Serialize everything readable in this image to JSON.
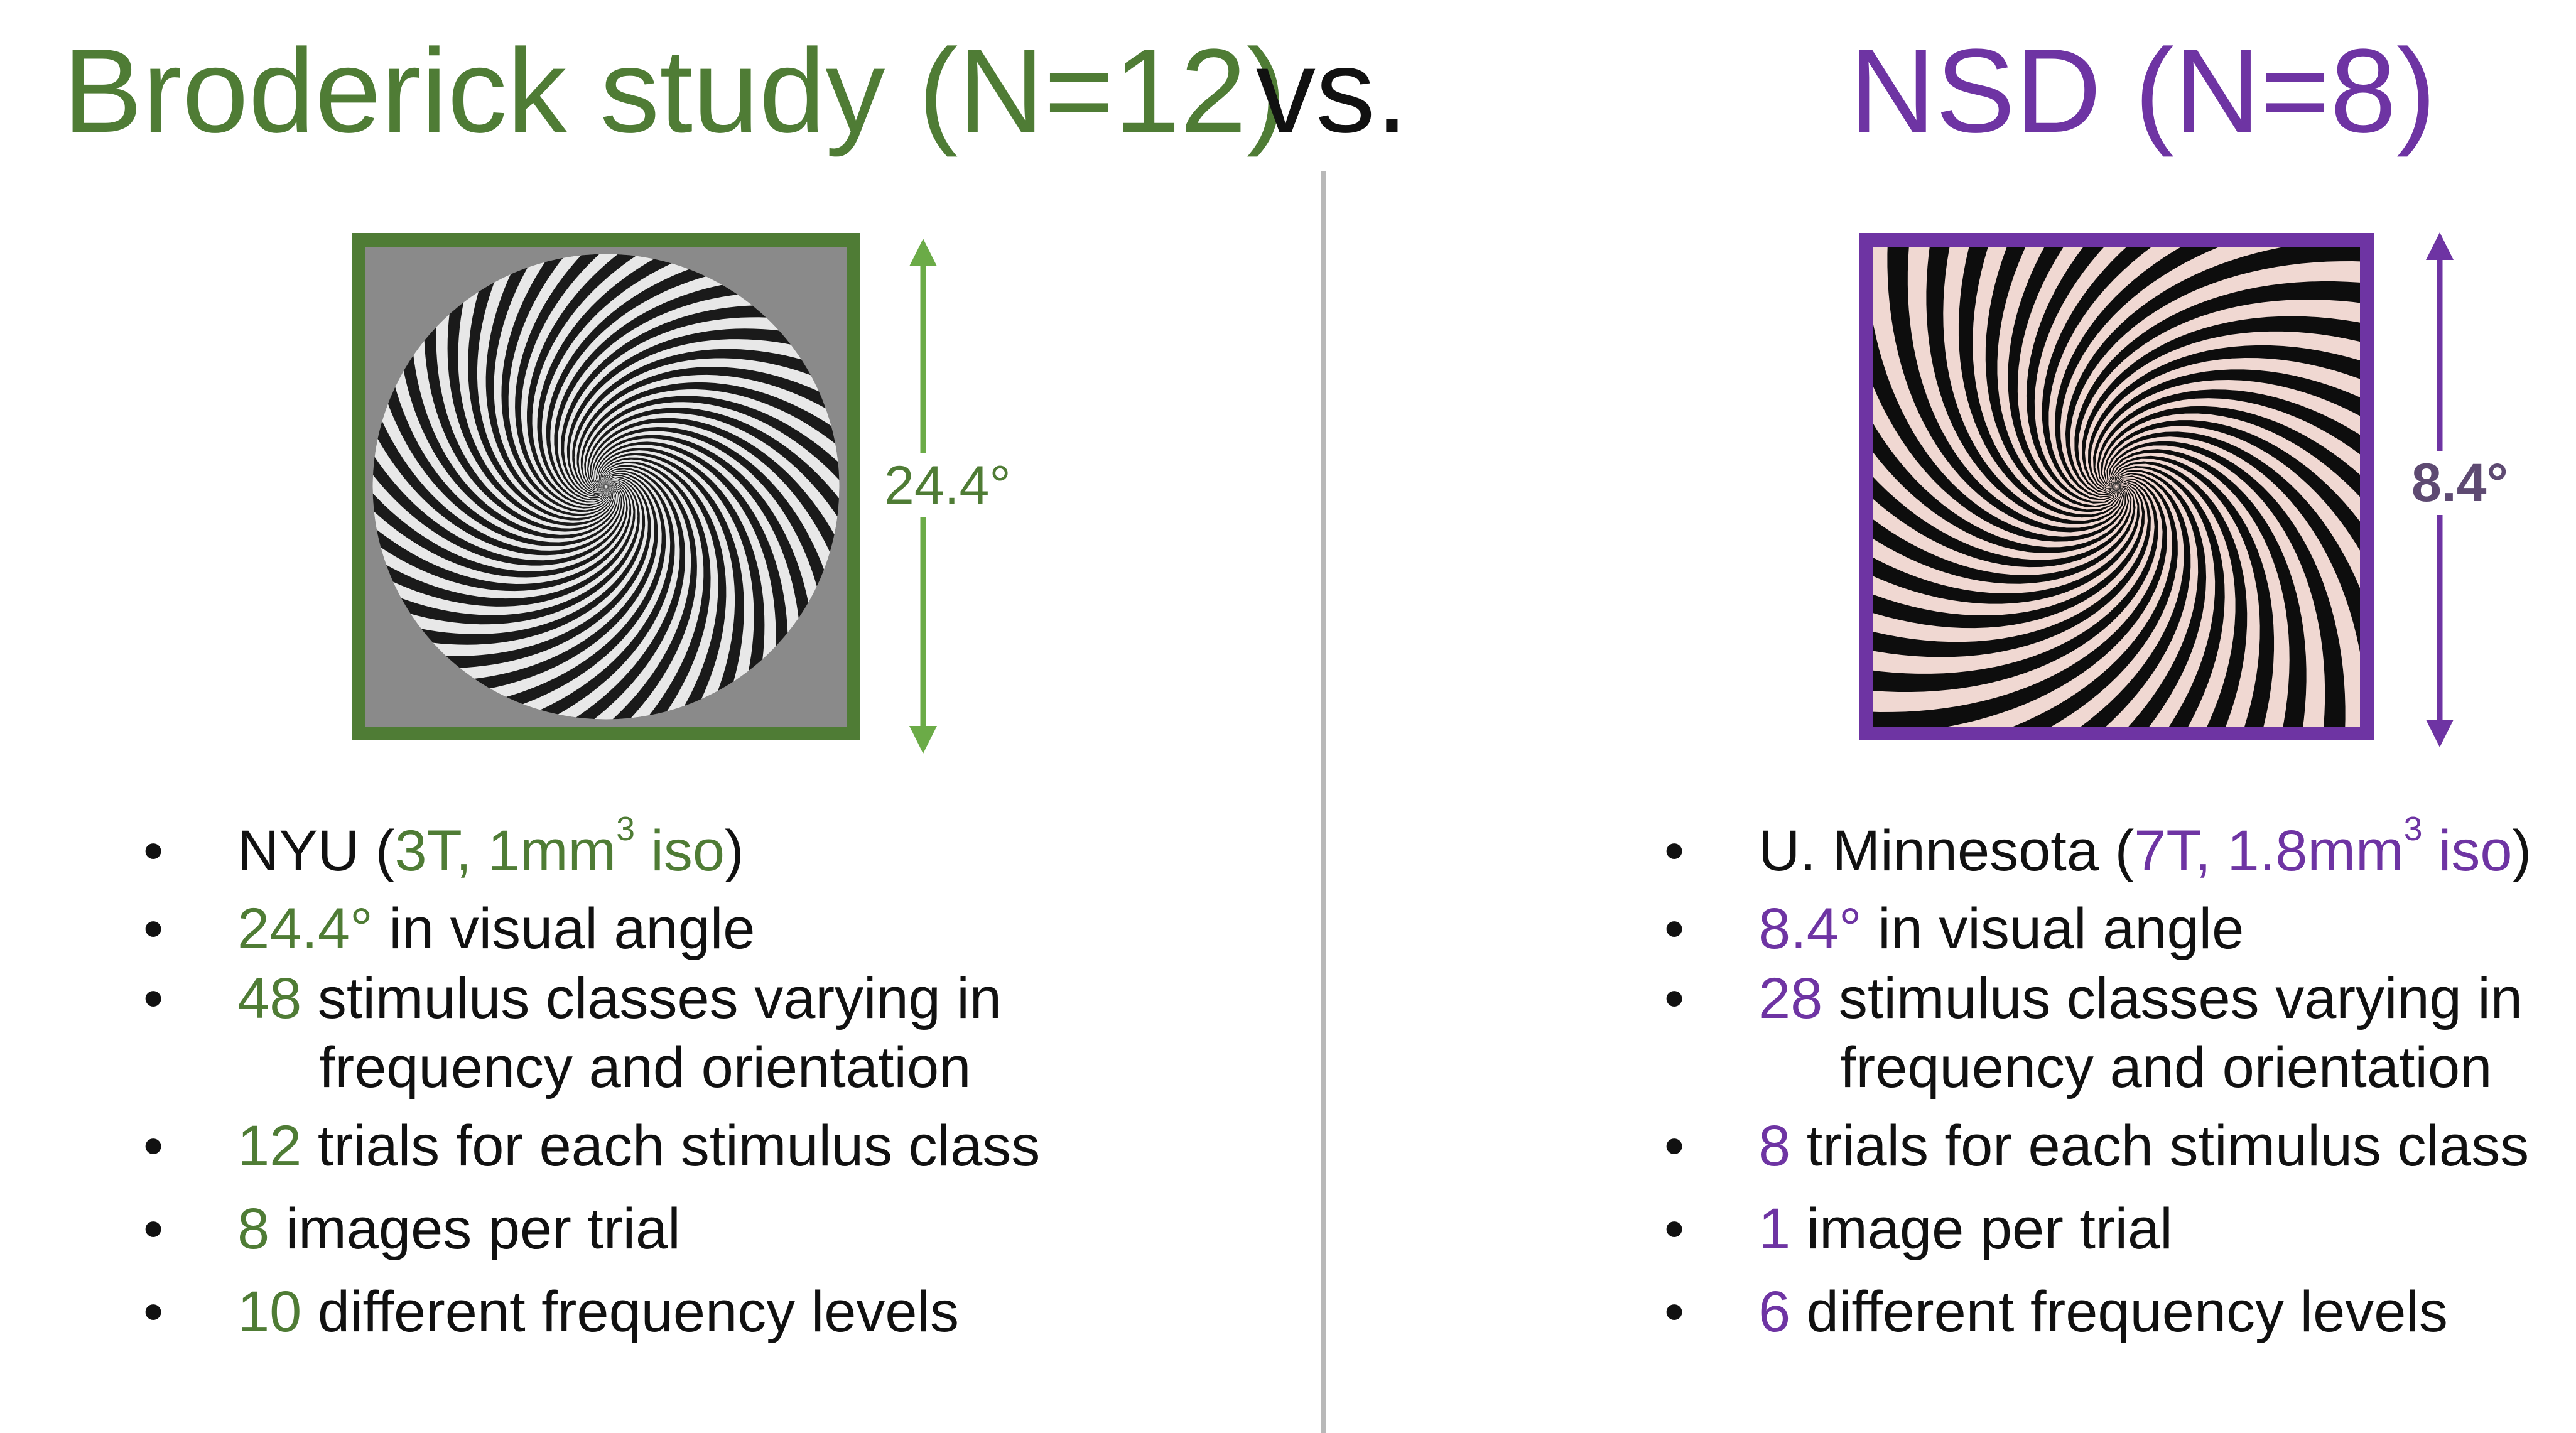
{
  "header": {
    "left_title": "Broderick study (N=12)",
    "vs": "vs.",
    "right_title": "NSD (N=8)"
  },
  "colors": {
    "broderick_green": "#4f7c35",
    "arrow_green": "#6bab47",
    "nsd_purple": "#6e34a3",
    "divider_gray": "#b8b8b8"
  },
  "broderick": {
    "stimulus_icon": "spiral-grating-gray-circle",
    "visual_angle_label": "24.4°",
    "bullets": {
      "site_prefix": "NYU (",
      "site_detail": "3T, 1mm",
      "site_sup": "3",
      "site_iso": " iso",
      "site_suffix": ")",
      "angle_value": "24.4°",
      "angle_text": " in visual angle",
      "classes_value": "48",
      "classes_text": " stimulus classes varying in",
      "classes_text_2": "frequency and orientation",
      "trials_value": "12",
      "trials_text": " trials for each stimulus class",
      "images_value": "8",
      "images_text": " images per trial",
      "freq_value": "10",
      "freq_text": " different frequency levels"
    }
  },
  "nsd": {
    "stimulus_icon": "spiral-grating-full-square",
    "visual_angle_label": "8.4°",
    "bullets": {
      "site_prefix": "U. Minnesota (",
      "site_detail": "7T, 1.8mm",
      "site_sup": "3",
      "site_iso": " iso",
      "site_suffix": ")",
      "angle_value": "8.4°",
      "angle_text": " in visual angle",
      "classes_value": "28",
      "classes_text": " stimulus classes varying in",
      "classes_text_2": "frequency and orientation",
      "trials_value": "8",
      "trials_text": " trials for each stimulus class",
      "images_value": "1",
      "images_text": " image per trial",
      "freq_value": "6",
      "freq_text": " different frequency levels"
    }
  },
  "bullet_glyph": "•"
}
